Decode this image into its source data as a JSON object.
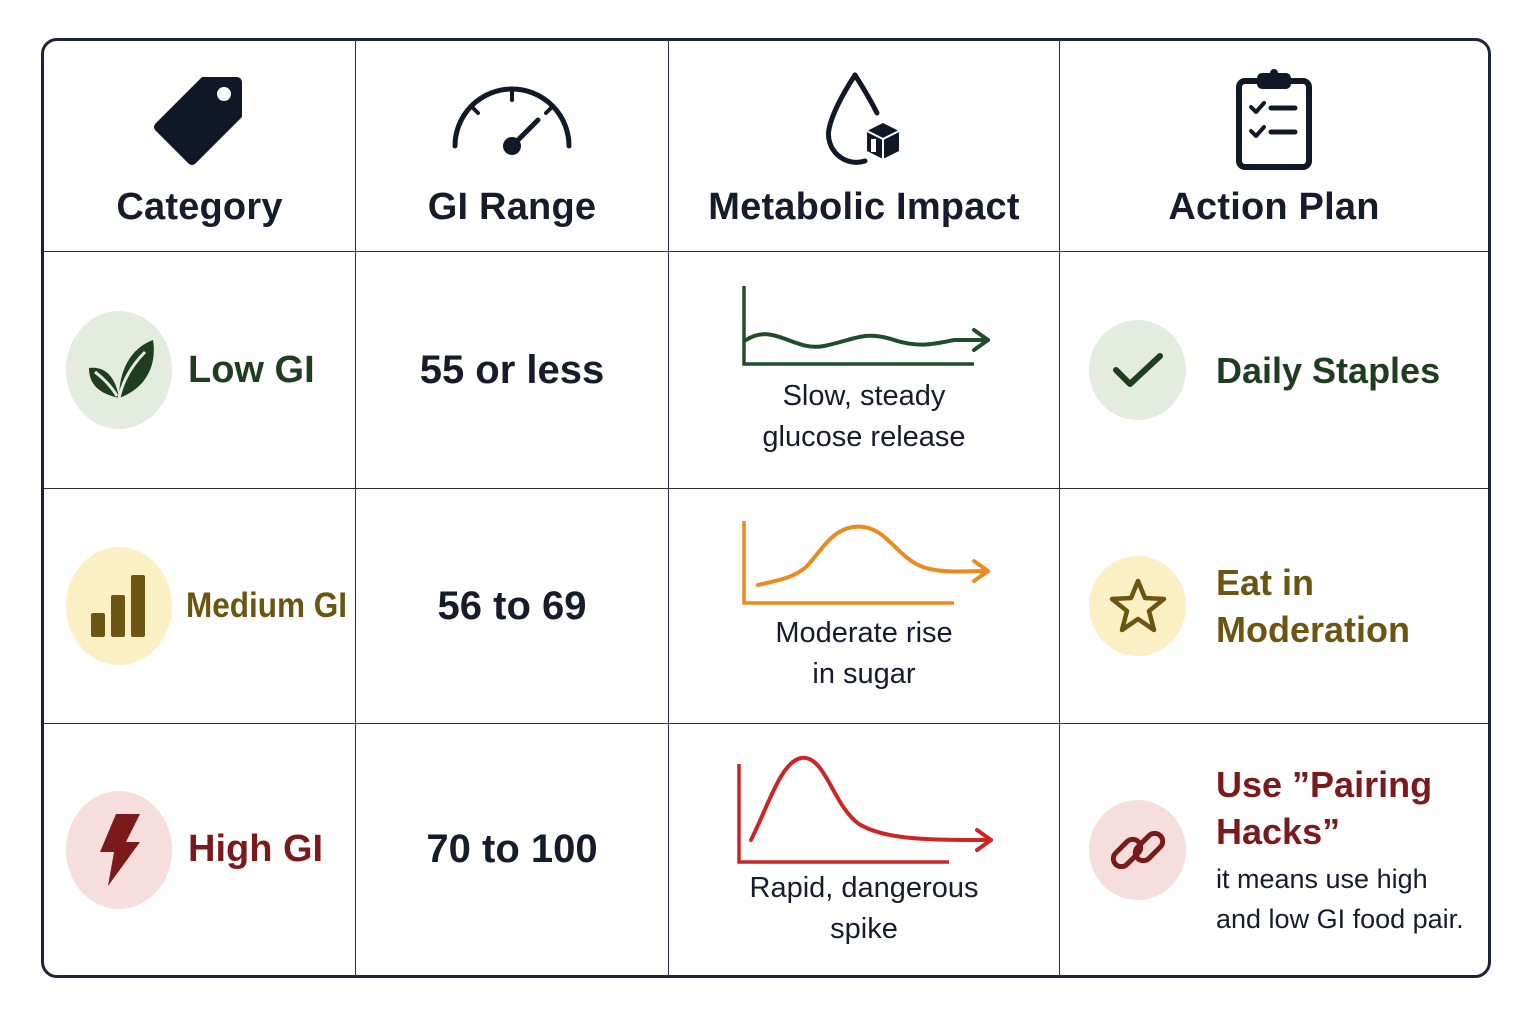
{
  "headers": [
    {
      "label": "Category",
      "icon": "tag-icon"
    },
    {
      "label": "GI Range",
      "icon": "gauge-icon"
    },
    {
      "label": "Metabolic Impact",
      "icon": "drop-cube-icon"
    },
    {
      "label": "Action Plan",
      "icon": "clipboard-checklist-icon"
    }
  ],
  "rows": [
    {
      "category": "Low GI",
      "category_icon": "leaf-icon",
      "category_color": "#1f3d1f",
      "badge_bg": "#e4ece0",
      "range": "55 or less",
      "impact_lines": [
        "Slow, steady",
        "glucose release"
      ],
      "impact_curve": "steady-wave",
      "curve_color": "#1f4d2a",
      "plan_title": [
        "Daily Staples"
      ],
      "plan_sub": [],
      "plan_icon": "check-icon",
      "plan_color": "#1f3d1f",
      "plan_bg": "#e4ece0"
    },
    {
      "category": "Medium GI",
      "category_icon": "bar-chart-icon",
      "category_color": "#6b5510",
      "badge_bg": "#fbf0c4",
      "range": "56 to 69",
      "impact_lines": [
        "Moderate rise",
        "in sugar"
      ],
      "impact_curve": "moderate-hump",
      "curve_color": "#ec8a1f",
      "plan_title": [
        "Eat in",
        "Moderation"
      ],
      "plan_sub": [],
      "plan_icon": "star-icon",
      "plan_color": "#6b5510",
      "plan_bg": "#fbf0c4"
    },
    {
      "category": "High GI",
      "category_icon": "lightning-icon",
      "category_color": "#7a1a1a",
      "badge_bg": "#f7dede",
      "range": "70 to 100",
      "impact_lines": [
        "Rapid, dangerous",
        "spike"
      ],
      "impact_curve": "sharp-spike",
      "curve_color": "#cc2525",
      "plan_title": [
        "Use ”Pairing",
        "Hacks”"
      ],
      "plan_sub": [
        "it means use high",
        "and low GI food pair."
      ],
      "plan_icon": "link-icon",
      "plan_color": "#7a1a1a",
      "plan_bg": "#f7dede"
    }
  ]
}
